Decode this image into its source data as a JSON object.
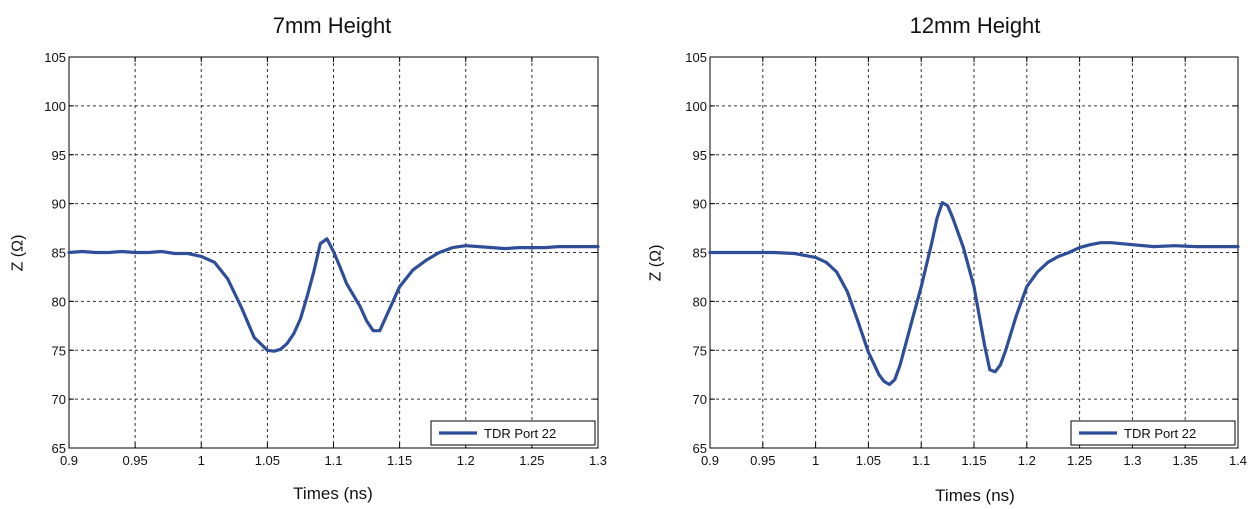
{
  "colors": {
    "series": "#2E4E97",
    "grid": "#333333",
    "axis": "#000000"
  },
  "charts": [
    {
      "title": "7mm Height",
      "xlabel": "Times (ns)",
      "ylabel": "Z (Ω)",
      "legend": "TDR Port 22"
    },
    {
      "title": "12mm Height",
      "xlabel": "Times (ns)",
      "ylabel": "Z (Ω)",
      "legend": "TDR Port 22"
    }
  ],
  "chart_data": [
    {
      "type": "line",
      "title": "7mm Height",
      "xlabel": "Times (ns)",
      "ylabel": "Z (Ω)",
      "xlim": [
        0.9,
        1.3
      ],
      "ylim": [
        65,
        105
      ],
      "xticks": [
        "0.9",
        "0.95",
        "1",
        "1.05",
        "1.1",
        "1.15",
        "1.2",
        "1.25",
        "1.3"
      ],
      "yticks": [
        "65",
        "70",
        "75",
        "80",
        "85",
        "90",
        "95",
        "100",
        "105"
      ],
      "grid": true,
      "legend_position": "bottom-right",
      "series": [
        {
          "name": "TDR Port 22",
          "x": [
            0.9,
            0.91,
            0.92,
            0.93,
            0.94,
            0.95,
            0.96,
            0.97,
            0.98,
            0.99,
            1.0,
            1.01,
            1.02,
            1.03,
            1.04,
            1.05,
            1.055,
            1.06,
            1.065,
            1.07,
            1.075,
            1.08,
            1.085,
            1.09,
            1.095,
            1.1,
            1.105,
            1.11,
            1.12,
            1.125,
            1.13,
            1.135,
            1.14,
            1.145,
            1.15,
            1.16,
            1.17,
            1.18,
            1.19,
            1.2,
            1.21,
            1.22,
            1.23,
            1.24,
            1.25,
            1.26,
            1.27,
            1.28,
            1.29,
            1.3
          ],
          "y": [
            85.0,
            85.1,
            85.0,
            85.0,
            85.1,
            85.0,
            85.0,
            85.1,
            84.9,
            84.9,
            84.6,
            84.0,
            82.3,
            79.5,
            76.3,
            75.0,
            74.9,
            75.1,
            75.7,
            76.7,
            78.2,
            80.5,
            83.0,
            85.9,
            86.4,
            85.1,
            83.5,
            81.8,
            79.5,
            78.0,
            77.0,
            77.0,
            78.5,
            80.0,
            81.5,
            83.2,
            84.2,
            85.0,
            85.5,
            85.7,
            85.6,
            85.5,
            85.4,
            85.5,
            85.5,
            85.5,
            85.6,
            85.6,
            85.6,
            85.6
          ]
        }
      ]
    },
    {
      "type": "line",
      "title": "12mm Height",
      "xlabel": "Times (ns)",
      "ylabel": "Z (Ω)",
      "xlim": [
        0.9,
        1.4
      ],
      "ylim": [
        65,
        105
      ],
      "xticks": [
        "0.9",
        "0.95",
        "1",
        "1.05",
        "1.1",
        "1.15",
        "1.2",
        "1.25",
        "1.3",
        "1.35",
        "1.4"
      ],
      "yticks": [
        "65",
        "70",
        "75",
        "80",
        "85",
        "90",
        "95",
        "100",
        "105"
      ],
      "grid": true,
      "legend_position": "bottom-right",
      "series": [
        {
          "name": "TDR Port 22",
          "x": [
            0.9,
            0.92,
            0.94,
            0.96,
            0.98,
            1.0,
            1.01,
            1.02,
            1.03,
            1.04,
            1.05,
            1.06,
            1.065,
            1.07,
            1.075,
            1.08,
            1.09,
            1.1,
            1.11,
            1.115,
            1.12,
            1.125,
            1.13,
            1.14,
            1.15,
            1.16,
            1.165,
            1.17,
            1.175,
            1.18,
            1.19,
            1.2,
            1.21,
            1.22,
            1.23,
            1.24,
            1.25,
            1.26,
            1.27,
            1.28,
            1.3,
            1.32,
            1.34,
            1.36,
            1.38,
            1.4
          ],
          "y": [
            85.0,
            85.0,
            85.0,
            85.0,
            84.9,
            84.5,
            84.0,
            83.0,
            81.0,
            78.0,
            74.8,
            72.5,
            71.8,
            71.5,
            72.0,
            73.5,
            77.5,
            81.5,
            86.0,
            88.5,
            90.1,
            89.8,
            88.5,
            85.5,
            81.5,
            75.5,
            73.0,
            72.8,
            73.5,
            75.0,
            78.5,
            81.5,
            83.0,
            84.0,
            84.6,
            85.0,
            85.5,
            85.8,
            86.0,
            86.0,
            85.8,
            85.6,
            85.7,
            85.6,
            85.6,
            85.6
          ]
        }
      ]
    }
  ]
}
